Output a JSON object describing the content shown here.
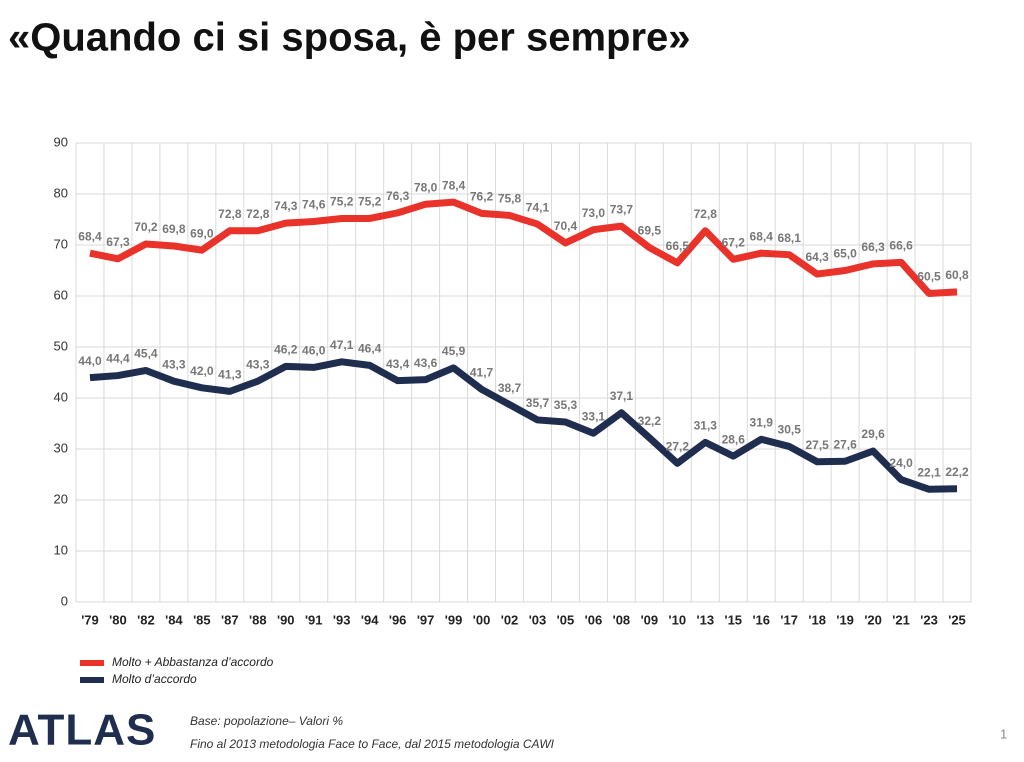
{
  "chart_data": {
    "type": "line",
    "title": "«Quando ci si sposa, è per sempre»",
    "categories": [
      "'79",
      "'80",
      "'82",
      "'84",
      "'85",
      "'87",
      "'88",
      "'90",
      "'91",
      "'93",
      "'94",
      "'96",
      "'97",
      "'99",
      "'00",
      "'02",
      "'03",
      "'05",
      "'06",
      "'08",
      "'09",
      "'10",
      "'13",
      "'15",
      "'16",
      "'17",
      "'18",
      "'19",
      "'20",
      "'21",
      "'23",
      "'25"
    ],
    "series": [
      {
        "name": "Molto + Abbastanza  d’accordo",
        "color": "#e8322a",
        "values": [
          68.4,
          67.3,
          70.2,
          69.8,
          69.0,
          72.8,
          72.8,
          74.3,
          74.6,
          75.2,
          75.2,
          76.3,
          78.0,
          78.4,
          76.2,
          75.8,
          74.1,
          70.4,
          73.0,
          73.7,
          69.5,
          66.5,
          72.8,
          67.2,
          68.4,
          68.1,
          64.3,
          65.0,
          66.3,
          66.6,
          60.5,
          60.8
        ],
        "value_labels": [
          "68,4",
          "67,3",
          "70,2",
          "69,8",
          "69,0",
          "72,8",
          "72,8",
          "74,3",
          "74,6",
          "75,2",
          "75,2",
          "76,3",
          "78,0",
          "78,4",
          "76,2",
          "75,8",
          "74,1",
          "70,4",
          "73,0",
          "73,7",
          "69,5",
          "66,5",
          "72,8",
          "67,2",
          "68,4",
          "68,1",
          "64,3",
          "65,0",
          "66,3",
          "66,6",
          "60,5",
          "60,8"
        ]
      },
      {
        "name": "Molto d’accordo",
        "color": "#1f2d4e",
        "values": [
          44.0,
          44.4,
          45.4,
          43.3,
          42.0,
          41.3,
          43.3,
          46.2,
          46.0,
          47.1,
          46.4,
          43.4,
          43.6,
          45.9,
          41.7,
          38.7,
          35.7,
          35.3,
          33.1,
          37.1,
          32.2,
          27.2,
          31.3,
          28.6,
          31.9,
          30.5,
          27.5,
          27.6,
          29.6,
          24.0,
          22.1,
          22.2
        ],
        "value_labels": [
          "44,0",
          "44,4",
          "45,4",
          "43,3",
          "42,0",
          "41,3",
          "43,3",
          "46,2",
          "46,0",
          "47,1",
          "46,4",
          "43,4",
          "43,6",
          "45,9",
          "41,7",
          "38,7",
          "35,7",
          "35,3",
          "33,1",
          "37,1",
          "32,2",
          "27,2",
          "31,3",
          "28,6",
          "31,9",
          "30,5",
          "27,5",
          "27,6",
          "29,6",
          "24,0",
          "22,1",
          "22,2"
        ]
      }
    ],
    "ylim": [
      0,
      90
    ],
    "yticks": [
      0,
      10,
      20,
      30,
      40,
      50,
      60,
      70,
      80,
      90
    ],
    "grid": true
  },
  "footer": {
    "logo": "ATLAS",
    "notes": [
      "Base: popolazione– Valori %",
      "Fino al 2013 metodologia Face to Face, dal 2015 metodologia CAWI"
    ],
    "page": "1"
  }
}
